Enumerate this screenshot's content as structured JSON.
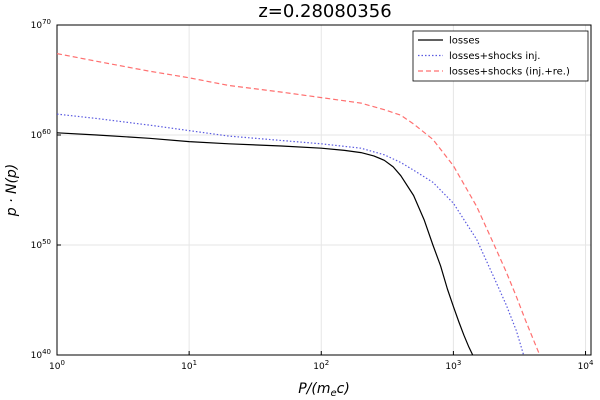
{
  "chart_data": {
    "type": "line",
    "title": "z=0.28080356",
    "xlabel": "P/(m_e c)",
    "ylabel": "p · N(p)",
    "x_scale": "log",
    "y_scale": "log",
    "xlim": [
      1,
      11000
    ],
    "ylim": [
      1e+40,
      1e+70
    ],
    "x_ticks": [
      {
        "base": "10",
        "exp": "0",
        "value": 1
      },
      {
        "base": "10",
        "exp": "1",
        "value": 10
      },
      {
        "base": "10",
        "exp": "2",
        "value": 100
      },
      {
        "base": "10",
        "exp": "3",
        "value": 1000
      },
      {
        "base": "10",
        "exp": "4",
        "value": 10000
      }
    ],
    "y_ticks": [
      {
        "base": "10",
        "exp": "40",
        "value": 1e+40
      },
      {
        "base": "10",
        "exp": "50",
        "value": 1e+50
      },
      {
        "base": "10",
        "exp": "60",
        "value": 1e+60
      },
      {
        "base": "10",
        "exp": "70",
        "value": 1e+70
      }
    ],
    "grid": true,
    "legend_position": "top-right",
    "series": [
      {
        "name": "losses",
        "color": "#000000",
        "style": "solid",
        "x": [
          1,
          2,
          5,
          10,
          20,
          50,
          100,
          150,
          200,
          250,
          300,
          350,
          400,
          500,
          600,
          700,
          800,
          900,
          1000,
          1100,
          1200,
          1300,
          1400
        ],
        "log10_y": [
          60.2,
          60.0,
          59.7,
          59.4,
          59.2,
          59.0,
          58.8,
          58.6,
          58.4,
          58.1,
          57.7,
          57.1,
          56.3,
          54.5,
          52.3,
          50.0,
          48.1,
          46.0,
          44.4,
          43.0,
          41.8,
          40.8,
          40.0
        ]
      },
      {
        "name": "losses+shocks inj.",
        "color": "#5a5ae0",
        "style": "dotted",
        "x": [
          1,
          2,
          5,
          10,
          20,
          50,
          100,
          200,
          300,
          400,
          500,
          700,
          1000,
          1500,
          2000,
          2500,
          3000,
          3400
        ],
        "log10_y": [
          61.9,
          61.5,
          60.9,
          60.4,
          59.9,
          59.5,
          59.2,
          58.8,
          58.2,
          57.5,
          56.8,
          55.7,
          53.8,
          50.5,
          47.2,
          44.6,
          42.2,
          40.0
        ]
      },
      {
        "name": "losses+shocks (inj.+re.)",
        "color": "#ff7070",
        "style": "dashed",
        "x": [
          1,
          2,
          5,
          10,
          20,
          50,
          100,
          200,
          300,
          400,
          500,
          700,
          1000,
          1500,
          2000,
          2500,
          3000,
          3500,
          4000,
          4500
        ],
        "log10_y": [
          67.4,
          66.7,
          65.8,
          65.2,
          64.5,
          63.9,
          63.4,
          62.9,
          62.3,
          61.8,
          61.0,
          59.6,
          57.2,
          53.5,
          50.2,
          47.6,
          45.3,
          43.2,
          41.5,
          40.0
        ]
      }
    ]
  }
}
